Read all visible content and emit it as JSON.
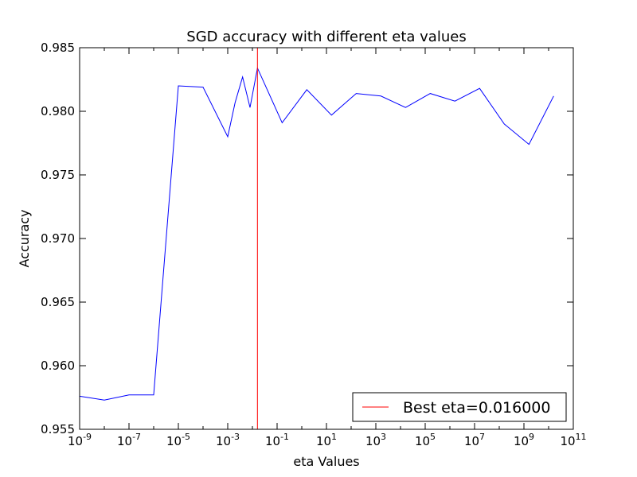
{
  "chart_data": {
    "type": "line",
    "title": "SGD accuracy with different eta values",
    "xlabel": "eta Values",
    "ylabel": "Accuracy",
    "x_scale": "log",
    "xlim": [
      1e-09,
      100000000000.0
    ],
    "ylim": [
      0.955,
      0.985
    ],
    "x_ticks": [
      {
        "value": 1e-09,
        "base": "10",
        "exp": "-9"
      },
      {
        "value": 1e-07,
        "base": "10",
        "exp": "-7"
      },
      {
        "value": 1e-05,
        "base": "10",
        "exp": "-5"
      },
      {
        "value": 0.001,
        "base": "10",
        "exp": "-3"
      },
      {
        "value": 0.1,
        "base": "10",
        "exp": "-1"
      },
      {
        "value": 10.0,
        "base": "10",
        "exp": "1"
      },
      {
        "value": 1000.0,
        "base": "10",
        "exp": "3"
      },
      {
        "value": 100000.0,
        "base": "10",
        "exp": "5"
      },
      {
        "value": 10000000.0,
        "base": "10",
        "exp": "7"
      },
      {
        "value": 1000000000.0,
        "base": "10",
        "exp": "9"
      },
      {
        "value": 100000000000.0,
        "base": "10",
        "exp": "11"
      }
    ],
    "y_ticks": [
      {
        "value": 0.955,
        "label": "0.955"
      },
      {
        "value": 0.96,
        "label": "0.960"
      },
      {
        "value": 0.965,
        "label": "0.965"
      },
      {
        "value": 0.97,
        "label": "0.970"
      },
      {
        "value": 0.975,
        "label": "0.975"
      },
      {
        "value": 0.98,
        "label": "0.980"
      },
      {
        "value": 0.985,
        "label": "0.985"
      }
    ],
    "grid": false,
    "legend_position": "bottom-right",
    "series": [
      {
        "color": "#0000ff",
        "x": [
          1e-09,
          1e-08,
          1e-07,
          1e-06,
          1e-05,
          0.0001,
          0.001,
          0.002,
          0.004,
          0.008,
          0.016,
          0.16,
          1.6,
          16,
          160,
          1600,
          16000,
          160000,
          1600000,
          16000000,
          160000000,
          1600000000,
          16000000000
        ],
        "y": [
          0.9576,
          0.9573,
          0.9577,
          0.9577,
          0.982,
          0.9819,
          0.978,
          0.9807,
          0.9827,
          0.9803,
          0.9834,
          0.9791,
          0.9817,
          0.9797,
          0.9814,
          0.9812,
          0.9803,
          0.9814,
          0.9808,
          0.9818,
          0.979,
          0.9774,
          0.9812
        ]
      }
    ],
    "vlines": [
      {
        "name": "Best eta=0.016000",
        "x": 0.016,
        "color": "#ff0000"
      }
    ]
  }
}
